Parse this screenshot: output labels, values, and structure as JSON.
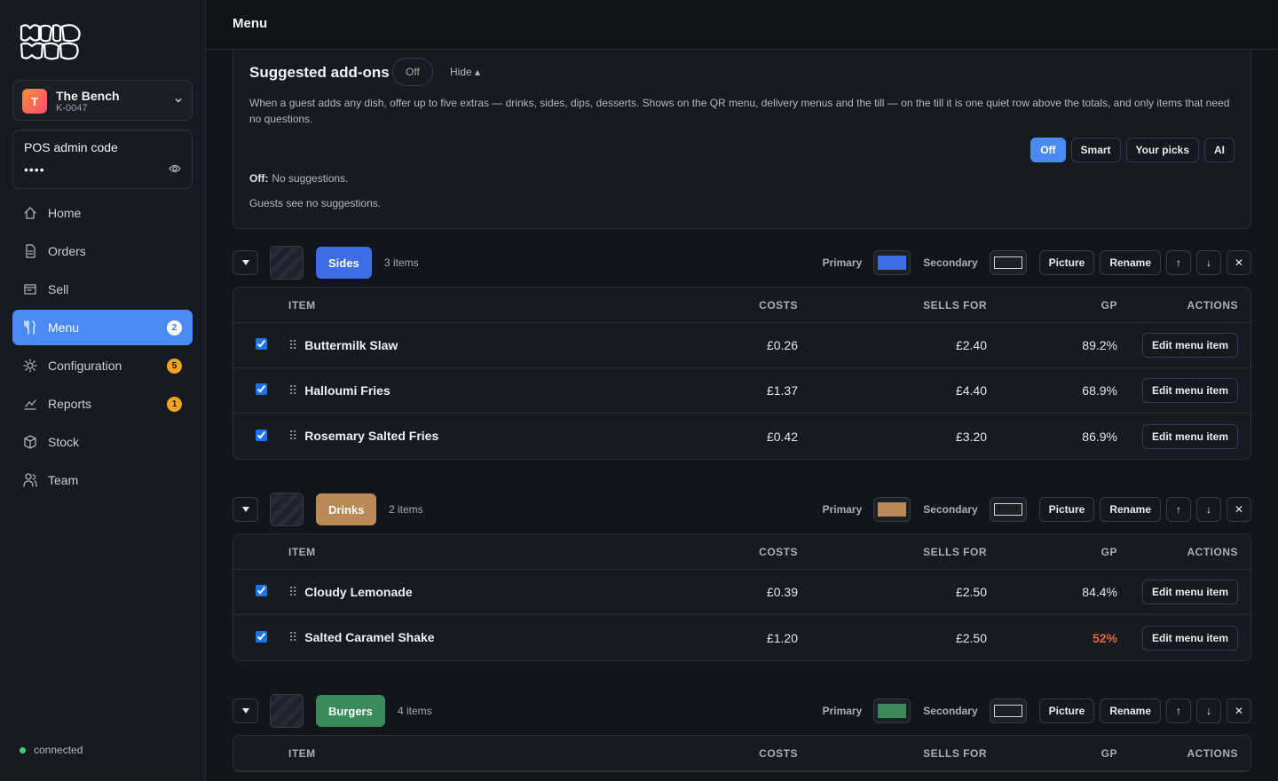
{
  "sidebar": {
    "venue": {
      "initial": "T",
      "name": "The Bench",
      "code": "K-0047"
    },
    "pos_admin": {
      "label": "POS admin code",
      "value": "••••"
    },
    "nav": [
      {
        "label": "Home"
      },
      {
        "label": "Orders"
      },
      {
        "label": "Sell"
      },
      {
        "label": "Menu",
        "badge": "2",
        "active": true
      },
      {
        "label": "Configuration",
        "badge": "5"
      },
      {
        "label": "Reports",
        "badge": "1"
      },
      {
        "label": "Stock"
      },
      {
        "label": "Team"
      }
    ],
    "status": "connected"
  },
  "header": {
    "title": "Menu"
  },
  "addons": {
    "title": "Suggested add-ons",
    "state": "Off",
    "toggle": "Hide ▴",
    "description": "When a guest adds any dish, offer up to five extras — drinks, sides, dips, desserts. Shows on the QR menu, delivery menus and the till — on the till it is one quiet row above the totals, and only items that need no questions.",
    "modes": [
      "Off",
      "Smart",
      "Your picks",
      "AI"
    ],
    "active_mode": 0,
    "summary_label": "Off:",
    "summary": "No suggestions.",
    "note": "Guests see no suggestions."
  },
  "categories": [
    {
      "name": "Sides",
      "color": "#3d6ee8",
      "count": "3 items",
      "primary_label": "Primary",
      "secondary_label": "Secondary",
      "buttons": [
        "Picture",
        "Rename",
        "↑",
        "↓",
        "✕"
      ],
      "columns": [
        "ITEM",
        "COSTS",
        "SELLS FOR",
        "GP",
        "ACTIONS"
      ],
      "rows": [
        {
          "name": "Buttermilk Slaw",
          "cost": "£0.26",
          "sells_for": "£2.40",
          "gp": "89.2%",
          "action": "Edit menu item"
        },
        {
          "name": "Halloumi Fries",
          "cost": "£1.37",
          "sells_for": "£4.40",
          "gp": "68.9%",
          "action": "Edit menu item"
        },
        {
          "name": "Rosemary Salted Fries",
          "cost": "£0.42",
          "sells_for": "£3.20",
          "gp": "86.9%",
          "action": "Edit menu item"
        }
      ]
    },
    {
      "name": "Drinks",
      "color": "#b98a57",
      "count": "2 items",
      "primary_label": "Primary",
      "secondary_label": "Secondary",
      "buttons": [
        "Picture",
        "Rename",
        "↑",
        "↓",
        "✕"
      ],
      "columns": [
        "ITEM",
        "COSTS",
        "SELLS FOR",
        "GP",
        "ACTIONS"
      ],
      "rows": [
        {
          "name": "Cloudy Lemonade",
          "cost": "£0.39",
          "sells_for": "£2.50",
          "gp": "84.4%",
          "action": "Edit menu item"
        },
        {
          "name": "Salted Caramel Shake",
          "cost": "£1.20",
          "sells_for": "£2.50",
          "gp": "52%",
          "gp_alert": true,
          "action": "Edit menu item"
        }
      ]
    },
    {
      "name": "Burgers",
      "color": "#3a8a5a",
      "count": "4 items",
      "primary_label": "Primary",
      "secondary_label": "Secondary",
      "buttons": [
        "Picture",
        "Rename",
        "↑",
        "↓",
        "✕"
      ],
      "columns": [
        "ITEM",
        "COSTS",
        "SELLS FOR",
        "GP",
        "ACTIONS"
      ],
      "rows": []
    }
  ]
}
